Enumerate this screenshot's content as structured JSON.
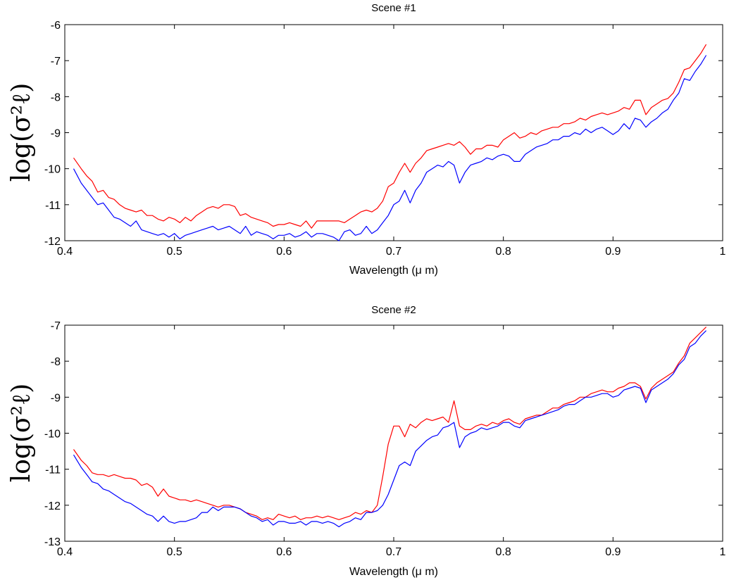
{
  "chart_data": [
    {
      "type": "line",
      "title": "Scene #1",
      "xlabel": "Wavelength (μ m)",
      "ylabel": "log(σ²ℓ)",
      "xlim": [
        0.4,
        1.0
      ],
      "ylim": [
        -12,
        -6
      ],
      "xticks": [
        "0.4",
        "0.5",
        "0.6",
        "0.7",
        "0.8",
        "0.9",
        "1"
      ],
      "yticks": [
        "-6",
        "-7",
        "-8",
        "-9",
        "-10",
        "-11",
        "-12"
      ],
      "grid": false,
      "series": [
        {
          "color": "#ff0000",
          "x": [
            0.408,
            0.415,
            0.42,
            0.425,
            0.43,
            0.435,
            0.44,
            0.445,
            0.45,
            0.455,
            0.46,
            0.465,
            0.47,
            0.475,
            0.48,
            0.485,
            0.49,
            0.495,
            0.5,
            0.505,
            0.51,
            0.515,
            0.52,
            0.525,
            0.53,
            0.535,
            0.54,
            0.545,
            0.55,
            0.555,
            0.56,
            0.565,
            0.57,
            0.575,
            0.58,
            0.585,
            0.59,
            0.595,
            0.6,
            0.605,
            0.61,
            0.615,
            0.62,
            0.625,
            0.63,
            0.635,
            0.64,
            0.645,
            0.65,
            0.655,
            0.66,
            0.665,
            0.67,
            0.675,
            0.68,
            0.685,
            0.69,
            0.695,
            0.7,
            0.705,
            0.71,
            0.715,
            0.72,
            0.725,
            0.73,
            0.735,
            0.74,
            0.745,
            0.75,
            0.755,
            0.76,
            0.765,
            0.77,
            0.775,
            0.78,
            0.785,
            0.79,
            0.795,
            0.8,
            0.805,
            0.81,
            0.815,
            0.82,
            0.825,
            0.83,
            0.835,
            0.84,
            0.845,
            0.85,
            0.855,
            0.86,
            0.865,
            0.87,
            0.875,
            0.88,
            0.885,
            0.89,
            0.895,
            0.9,
            0.905,
            0.91,
            0.915,
            0.92,
            0.925,
            0.93,
            0.935,
            0.94,
            0.945,
            0.95,
            0.955,
            0.96,
            0.965,
            0.97,
            0.975,
            0.98,
            0.985
          ],
          "values": [
            -9.7,
            -10.0,
            -10.2,
            -10.35,
            -10.65,
            -10.6,
            -10.8,
            -10.85,
            -11.0,
            -11.1,
            -11.15,
            -11.2,
            -11.15,
            -11.3,
            -11.3,
            -11.4,
            -11.45,
            -11.35,
            -11.4,
            -11.5,
            -11.35,
            -11.45,
            -11.3,
            -11.2,
            -11.1,
            -11.05,
            -11.1,
            -11.0,
            -11.0,
            -11.05,
            -11.3,
            -11.25,
            -11.35,
            -11.4,
            -11.45,
            -11.5,
            -11.6,
            -11.55,
            -11.55,
            -11.5,
            -11.55,
            -11.6,
            -11.45,
            -11.65,
            -11.45,
            -11.45,
            -11.45,
            -11.45,
            -11.45,
            -11.5,
            -11.4,
            -11.3,
            -11.2,
            -11.15,
            -11.2,
            -11.1,
            -10.9,
            -10.5,
            -10.4,
            -10.1,
            -9.85,
            -10.1,
            -9.85,
            -9.7,
            -9.5,
            -9.45,
            -9.4,
            -9.35,
            -9.3,
            -9.35,
            -9.25,
            -9.4,
            -9.6,
            -9.45,
            -9.45,
            -9.35,
            -9.35,
            -9.4,
            -9.2,
            -9.1,
            -9.0,
            -9.15,
            -9.1,
            -9.0,
            -9.05,
            -8.95,
            -8.9,
            -8.85,
            -8.85,
            -8.75,
            -8.75,
            -8.7,
            -8.6,
            -8.65,
            -8.55,
            -8.5,
            -8.45,
            -8.5,
            -8.45,
            -8.4,
            -8.3,
            -8.35,
            -8.1,
            -8.1,
            -8.5,
            -8.3,
            -8.2,
            -8.1,
            -8.05,
            -7.9,
            -7.6,
            -7.25,
            -7.2,
            -7.0,
            -6.8,
            -6.55
          ]
        },
        {
          "color": "#0000ff",
          "x": [
            0.408,
            0.415,
            0.42,
            0.425,
            0.43,
            0.435,
            0.44,
            0.445,
            0.45,
            0.455,
            0.46,
            0.465,
            0.47,
            0.475,
            0.48,
            0.485,
            0.49,
            0.495,
            0.5,
            0.505,
            0.51,
            0.515,
            0.52,
            0.525,
            0.53,
            0.535,
            0.54,
            0.545,
            0.55,
            0.555,
            0.56,
            0.565,
            0.57,
            0.575,
            0.58,
            0.585,
            0.59,
            0.595,
            0.6,
            0.605,
            0.61,
            0.615,
            0.62,
            0.625,
            0.63,
            0.635,
            0.64,
            0.645,
            0.65,
            0.655,
            0.66,
            0.665,
            0.67,
            0.675,
            0.68,
            0.685,
            0.69,
            0.695,
            0.7,
            0.705,
            0.71,
            0.715,
            0.72,
            0.725,
            0.73,
            0.735,
            0.74,
            0.745,
            0.75,
            0.755,
            0.76,
            0.765,
            0.77,
            0.775,
            0.78,
            0.785,
            0.79,
            0.795,
            0.8,
            0.805,
            0.81,
            0.815,
            0.82,
            0.825,
            0.83,
            0.835,
            0.84,
            0.845,
            0.85,
            0.855,
            0.86,
            0.865,
            0.87,
            0.875,
            0.88,
            0.885,
            0.89,
            0.895,
            0.9,
            0.905,
            0.91,
            0.915,
            0.92,
            0.925,
            0.93,
            0.935,
            0.94,
            0.945,
            0.95,
            0.955,
            0.96,
            0.965,
            0.97,
            0.975,
            0.98,
            0.985
          ],
          "values": [
            -10.0,
            -10.4,
            -10.6,
            -10.8,
            -11.0,
            -10.95,
            -11.15,
            -11.35,
            -11.4,
            -11.5,
            -11.6,
            -11.45,
            -11.7,
            -11.75,
            -11.8,
            -11.85,
            -11.8,
            -11.9,
            -11.8,
            -11.95,
            -11.85,
            -11.8,
            -11.75,
            -11.7,
            -11.65,
            -11.6,
            -11.7,
            -11.65,
            -11.6,
            -11.7,
            -11.8,
            -11.6,
            -11.85,
            -11.75,
            -11.8,
            -11.85,
            -11.95,
            -11.85,
            -11.85,
            -11.8,
            -11.9,
            -11.85,
            -11.75,
            -11.9,
            -11.8,
            -11.8,
            -11.85,
            -11.9,
            -12.0,
            -11.75,
            -11.7,
            -11.85,
            -11.8,
            -11.6,
            -11.8,
            -11.7,
            -11.5,
            -11.3,
            -11.0,
            -10.9,
            -10.6,
            -10.95,
            -10.6,
            -10.4,
            -10.1,
            -10.0,
            -9.9,
            -9.95,
            -9.8,
            -9.9,
            -10.4,
            -10.1,
            -9.9,
            -9.85,
            -9.8,
            -9.7,
            -9.75,
            -9.65,
            -9.6,
            -9.65,
            -9.8,
            -9.8,
            -9.6,
            -9.5,
            -9.4,
            -9.35,
            -9.3,
            -9.2,
            -9.2,
            -9.1,
            -9.1,
            -9.0,
            -9.05,
            -8.9,
            -9.0,
            -8.9,
            -8.85,
            -8.95,
            -9.05,
            -8.95,
            -8.75,
            -8.9,
            -8.6,
            -8.65,
            -8.85,
            -8.7,
            -8.6,
            -8.45,
            -8.35,
            -8.1,
            -7.9,
            -7.5,
            -7.55,
            -7.3,
            -7.1,
            -6.85
          ]
        }
      ]
    },
    {
      "type": "line",
      "title": "Scene #2",
      "xlabel": "Wavelength (μ m)",
      "ylabel": "log(σ²ℓ)",
      "xlim": [
        0.4,
        1.0
      ],
      "ylim": [
        -13,
        -7
      ],
      "xticks": [
        "0.4",
        "0.5",
        "0.6",
        "0.7",
        "0.8",
        "0.9",
        "1"
      ],
      "yticks": [
        "-7",
        "-8",
        "-9",
        "-10",
        "-11",
        "-12",
        "-13"
      ],
      "grid": false,
      "series": [
        {
          "color": "#ff0000",
          "x": [
            0.408,
            0.415,
            0.42,
            0.425,
            0.43,
            0.435,
            0.44,
            0.445,
            0.45,
            0.455,
            0.46,
            0.465,
            0.47,
            0.475,
            0.48,
            0.485,
            0.49,
            0.495,
            0.5,
            0.505,
            0.51,
            0.515,
            0.52,
            0.525,
            0.53,
            0.535,
            0.54,
            0.545,
            0.55,
            0.555,
            0.56,
            0.565,
            0.57,
            0.575,
            0.58,
            0.585,
            0.59,
            0.595,
            0.6,
            0.605,
            0.61,
            0.615,
            0.62,
            0.625,
            0.63,
            0.635,
            0.64,
            0.645,
            0.65,
            0.655,
            0.66,
            0.665,
            0.67,
            0.675,
            0.68,
            0.685,
            0.69,
            0.695,
            0.7,
            0.705,
            0.71,
            0.715,
            0.72,
            0.725,
            0.73,
            0.735,
            0.74,
            0.745,
            0.75,
            0.755,
            0.76,
            0.765,
            0.77,
            0.775,
            0.78,
            0.785,
            0.79,
            0.795,
            0.8,
            0.805,
            0.81,
            0.815,
            0.82,
            0.825,
            0.83,
            0.835,
            0.84,
            0.845,
            0.85,
            0.855,
            0.86,
            0.865,
            0.87,
            0.875,
            0.88,
            0.885,
            0.89,
            0.895,
            0.9,
            0.905,
            0.91,
            0.915,
            0.92,
            0.925,
            0.93,
            0.935,
            0.94,
            0.945,
            0.95,
            0.955,
            0.96,
            0.965,
            0.97,
            0.975,
            0.98,
            0.985
          ],
          "values": [
            -10.45,
            -10.75,
            -10.9,
            -11.1,
            -11.15,
            -11.15,
            -11.2,
            -11.15,
            -11.2,
            -11.25,
            -11.25,
            -11.3,
            -11.45,
            -11.4,
            -11.5,
            -11.75,
            -11.55,
            -11.75,
            -11.8,
            -11.85,
            -11.85,
            -11.9,
            -11.85,
            -11.9,
            -11.95,
            -12.0,
            -12.05,
            -12.0,
            -12.0,
            -12.05,
            -12.1,
            -12.2,
            -12.25,
            -12.3,
            -12.4,
            -12.35,
            -12.4,
            -12.25,
            -12.3,
            -12.35,
            -12.3,
            -12.4,
            -12.35,
            -12.35,
            -12.3,
            -12.35,
            -12.3,
            -12.35,
            -12.4,
            -12.35,
            -12.3,
            -12.2,
            -12.25,
            -12.15,
            -12.2,
            -12.0,
            -11.2,
            -10.3,
            -9.8,
            -9.8,
            -10.1,
            -9.75,
            -9.85,
            -9.7,
            -9.6,
            -9.65,
            -9.6,
            -9.55,
            -9.7,
            -9.1,
            -9.8,
            -9.9,
            -9.9,
            -9.8,
            -9.75,
            -9.8,
            -9.7,
            -9.75,
            -9.65,
            -9.6,
            -9.7,
            -9.75,
            -9.6,
            -9.55,
            -9.5,
            -9.5,
            -9.4,
            -9.3,
            -9.3,
            -9.2,
            -9.15,
            -9.1,
            -9.0,
            -9.0,
            -8.9,
            -8.85,
            -8.8,
            -8.85,
            -8.85,
            -8.75,
            -8.7,
            -8.6,
            -8.6,
            -8.7,
            -9.05,
            -8.75,
            -8.6,
            -8.5,
            -8.4,
            -8.3,
            -8.05,
            -7.85,
            -7.5,
            -7.35,
            -7.2,
            -7.05
          ]
        },
        {
          "color": "#0000ff",
          "x": [
            0.408,
            0.415,
            0.42,
            0.425,
            0.43,
            0.435,
            0.44,
            0.445,
            0.45,
            0.455,
            0.46,
            0.465,
            0.47,
            0.475,
            0.48,
            0.485,
            0.49,
            0.495,
            0.5,
            0.505,
            0.51,
            0.515,
            0.52,
            0.525,
            0.53,
            0.535,
            0.54,
            0.545,
            0.55,
            0.555,
            0.56,
            0.565,
            0.57,
            0.575,
            0.58,
            0.585,
            0.59,
            0.595,
            0.6,
            0.605,
            0.61,
            0.615,
            0.62,
            0.625,
            0.63,
            0.635,
            0.64,
            0.645,
            0.65,
            0.655,
            0.66,
            0.665,
            0.67,
            0.675,
            0.68,
            0.685,
            0.69,
            0.695,
            0.7,
            0.705,
            0.71,
            0.715,
            0.72,
            0.725,
            0.73,
            0.735,
            0.74,
            0.745,
            0.75,
            0.755,
            0.76,
            0.765,
            0.77,
            0.775,
            0.78,
            0.785,
            0.79,
            0.795,
            0.8,
            0.805,
            0.81,
            0.815,
            0.82,
            0.825,
            0.83,
            0.835,
            0.84,
            0.845,
            0.85,
            0.855,
            0.86,
            0.865,
            0.87,
            0.875,
            0.88,
            0.885,
            0.89,
            0.895,
            0.9,
            0.905,
            0.91,
            0.915,
            0.92,
            0.925,
            0.93,
            0.935,
            0.94,
            0.945,
            0.95,
            0.955,
            0.96,
            0.965,
            0.97,
            0.975,
            0.98,
            0.985
          ],
          "values": [
            -10.6,
            -10.95,
            -11.15,
            -11.35,
            -11.4,
            -11.55,
            -11.6,
            -11.7,
            -11.8,
            -11.9,
            -11.95,
            -12.05,
            -12.15,
            -12.25,
            -12.3,
            -12.45,
            -12.3,
            -12.45,
            -12.5,
            -12.45,
            -12.45,
            -12.4,
            -12.35,
            -12.2,
            -12.2,
            -12.05,
            -12.15,
            -12.05,
            -12.05,
            -12.05,
            -12.1,
            -12.2,
            -12.3,
            -12.35,
            -12.45,
            -12.4,
            -12.55,
            -12.45,
            -12.45,
            -12.5,
            -12.5,
            -12.45,
            -12.55,
            -12.45,
            -12.45,
            -12.5,
            -12.45,
            -12.5,
            -12.6,
            -12.5,
            -12.45,
            -12.35,
            -12.4,
            -12.2,
            -12.2,
            -12.15,
            -12.0,
            -11.7,
            -11.3,
            -10.9,
            -10.8,
            -10.9,
            -10.5,
            -10.35,
            -10.2,
            -10.1,
            -10.05,
            -9.85,
            -9.8,
            -9.7,
            -10.4,
            -10.1,
            -10.0,
            -9.95,
            -9.85,
            -9.9,
            -9.85,
            -9.8,
            -9.7,
            -9.7,
            -9.8,
            -9.85,
            -9.65,
            -9.6,
            -9.55,
            -9.5,
            -9.45,
            -9.4,
            -9.35,
            -9.25,
            -9.2,
            -9.2,
            -9.1,
            -9.0,
            -9.0,
            -8.95,
            -8.9,
            -8.9,
            -9.0,
            -8.95,
            -8.8,
            -8.75,
            -8.7,
            -8.75,
            -9.15,
            -8.8,
            -8.7,
            -8.6,
            -8.5,
            -8.35,
            -8.1,
            -7.95,
            -7.6,
            -7.5,
            -7.3,
            -7.15
          ]
        }
      ]
    }
  ]
}
